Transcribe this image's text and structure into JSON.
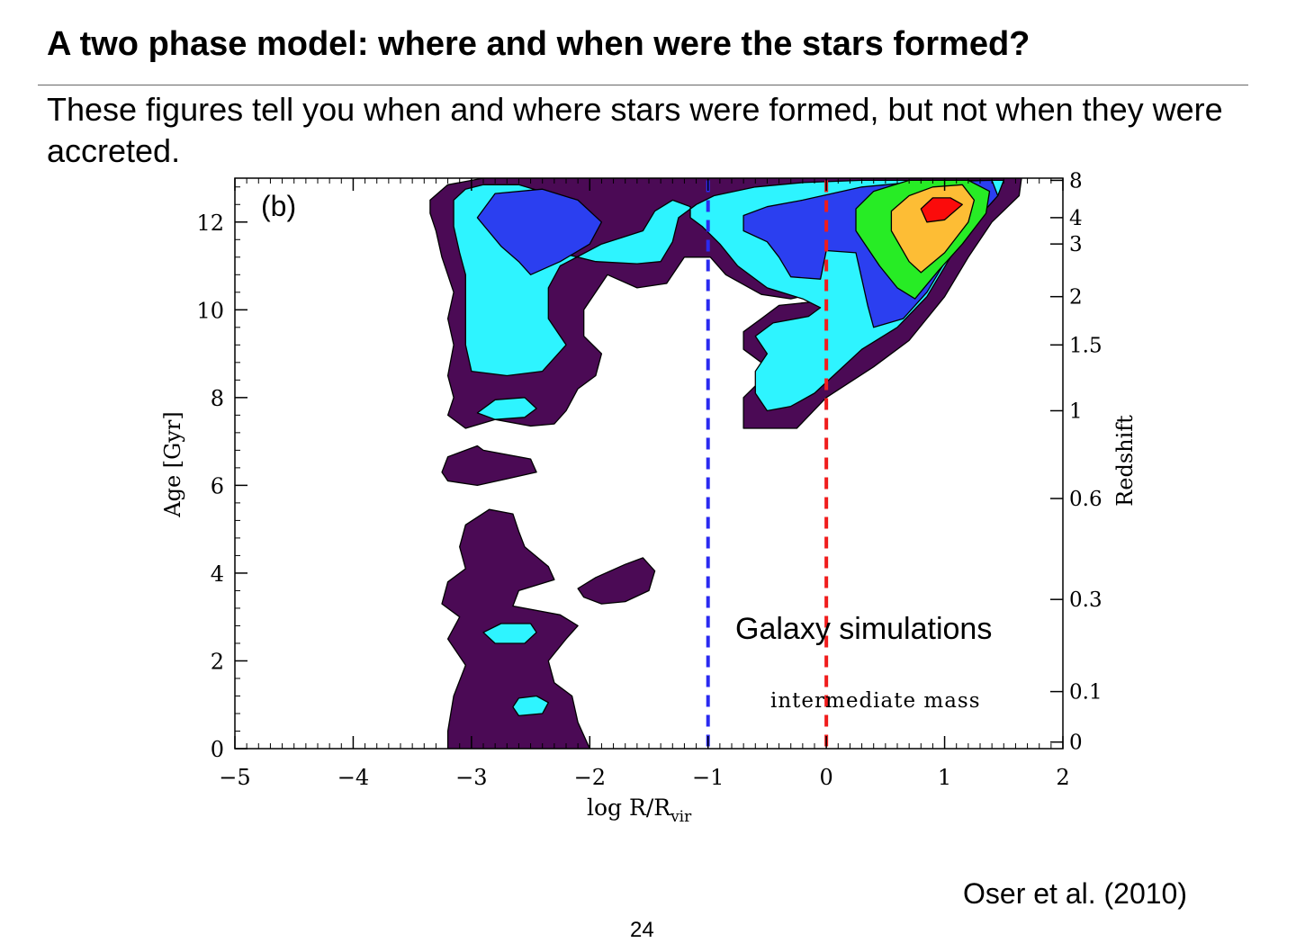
{
  "slide": {
    "title": "A two phase model: where and when were the stars formed?",
    "subtitle": "These figures tell you when and where stars were formed, but not when they were accreted.",
    "citation": "Oser et al. (2010)",
    "page_number": "24"
  },
  "chart_data": {
    "type": "contour",
    "panel_label": "(b)",
    "xlabel": "log R/R",
    "xlabel_subscript": "vir",
    "ylabel": "Age [Gyr]",
    "y2label": "Redshift",
    "xlim": [
      -5,
      2
    ],
    "ylim": [
      0,
      13
    ],
    "x_ticks": [
      -5,
      -4,
      -3,
      -2,
      -1,
      0,
      1,
      2
    ],
    "x_tick_labels": [
      "−5",
      "−4",
      "−3",
      "−2",
      "−1",
      "0",
      "1",
      "2"
    ],
    "y_ticks": [
      0,
      2,
      4,
      6,
      8,
      10,
      12
    ],
    "y_tick_labels": [
      "0",
      "2",
      "4",
      "6",
      "8",
      "10",
      "12"
    ],
    "redshift_ticks": [
      {
        "label": "8",
        "age": 12.95
      },
      {
        "label": "4",
        "age": 12.1
      },
      {
        "label": "3",
        "age": 11.5
      },
      {
        "label": "2",
        "age": 10.3
      },
      {
        "label": "1.5",
        "age": 9.2
      },
      {
        "label": "1",
        "age": 7.7
      },
      {
        "label": "0.6",
        "age": 5.7
      },
      {
        "label": "0.3",
        "age": 3.4
      },
      {
        "label": "0.1",
        "age": 1.3
      },
      {
        "label": "0",
        "age": 0.15
      }
    ],
    "reference_lines": [
      {
        "x": -1,
        "color": "#2a2af0",
        "style": "dashed"
      },
      {
        "x": 0,
        "color": "#f01c1c",
        "style": "dashed"
      }
    ],
    "annotations": {
      "main": "Galaxy simulations",
      "sub": "intermediate mass"
    },
    "levels": [
      {
        "color": "#4b0a55"
      },
      {
        "color": "#2ef4ff"
      },
      {
        "color": "#2b3ff0"
      },
      {
        "color": "#27ec25"
      },
      {
        "color": "#fdbd35"
      },
      {
        "color": "#fb0b0b"
      }
    ],
    "regions": [
      {
        "level": 0,
        "points": [
          [
            -3.35,
            12.5
          ],
          [
            -3.2,
            12.85
          ],
          [
            -2.9,
            13
          ],
          [
            -0.8,
            13
          ],
          [
            1.65,
            13
          ],
          [
            1.63,
            12.6
          ],
          [
            1.4,
            12
          ],
          [
            1.2,
            11.2
          ],
          [
            1.0,
            10.3
          ],
          [
            0.7,
            9.3
          ],
          [
            0.4,
            8.7
          ],
          [
            0.0,
            8.0
          ],
          [
            -0.25,
            7.3
          ],
          [
            -0.7,
            7.3
          ],
          [
            -0.7,
            7.6
          ],
          [
            -0.7,
            8.0
          ],
          [
            -0.55,
            8.4
          ],
          [
            -0.55,
            8.8
          ],
          [
            -0.7,
            9.1
          ],
          [
            -0.7,
            9.5
          ],
          [
            -0.55,
            9.8
          ],
          [
            -0.4,
            10.1
          ],
          [
            -0.05,
            10.2
          ],
          [
            -0.05,
            10.4
          ],
          [
            -0.3,
            10.25
          ],
          [
            -0.55,
            10.35
          ],
          [
            -0.85,
            10.8
          ],
          [
            -0.98,
            11.2
          ],
          [
            -1.2,
            11.2
          ],
          [
            -1.35,
            10.6
          ],
          [
            -1.6,
            10.5
          ],
          [
            -1.85,
            10.8
          ],
          [
            -2.05,
            10.0
          ],
          [
            -2.05,
            9.4
          ],
          [
            -1.9,
            9.0
          ],
          [
            -1.95,
            8.5
          ],
          [
            -2.1,
            8.2
          ],
          [
            -2.2,
            7.7
          ],
          [
            -2.3,
            7.4
          ],
          [
            -2.5,
            7.35
          ],
          [
            -2.8,
            7.5
          ],
          [
            -3.05,
            7.3
          ],
          [
            -3.2,
            7.6
          ],
          [
            -3.15,
            8.0
          ],
          [
            -3.2,
            8.5
          ],
          [
            -3.15,
            9.2
          ],
          [
            -3.2,
            9.8
          ],
          [
            -3.15,
            10.4
          ],
          [
            -3.25,
            11.2
          ],
          [
            -3.3,
            11.8
          ],
          [
            -3.35,
            12.2
          ]
        ]
      },
      {
        "level": 0,
        "points": [
          [
            -3.25,
            6.3
          ],
          [
            -3.2,
            6.65
          ],
          [
            -2.95,
            6.9
          ],
          [
            -2.9,
            6.8
          ],
          [
            -2.5,
            6.6
          ],
          [
            -2.45,
            6.3
          ],
          [
            -2.7,
            6.15
          ],
          [
            -2.95,
            6.0
          ],
          [
            -3.2,
            6.1
          ]
        ]
      },
      {
        "level": 0,
        "points": [
          [
            -3.2,
            0
          ],
          [
            -3.2,
            0.4
          ],
          [
            -3.15,
            1.2
          ],
          [
            -3.05,
            1.9
          ],
          [
            -3.2,
            2.5
          ],
          [
            -3.1,
            3.0
          ],
          [
            -3.25,
            3.3
          ],
          [
            -3.2,
            3.8
          ],
          [
            -3.05,
            4.1
          ],
          [
            -3.1,
            4.6
          ],
          [
            -3.05,
            5.1
          ],
          [
            -2.85,
            5.45
          ],
          [
            -2.65,
            5.35
          ],
          [
            -2.6,
            4.95
          ],
          [
            -2.55,
            4.6
          ],
          [
            -2.35,
            4.15
          ],
          [
            -2.3,
            3.85
          ],
          [
            -2.6,
            3.6
          ],
          [
            -2.65,
            3.25
          ],
          [
            -2.25,
            3.05
          ],
          [
            -2.1,
            2.8
          ],
          [
            -2.2,
            2.5
          ],
          [
            -2.35,
            2.0
          ],
          [
            -2.3,
            1.5
          ],
          [
            -2.15,
            1.2
          ],
          [
            -2.1,
            0.6
          ],
          [
            -2.0,
            0
          ]
        ]
      },
      {
        "level": 0,
        "points": [
          [
            -2.1,
            3.65
          ],
          [
            -1.95,
            3.9
          ],
          [
            -1.7,
            4.2
          ],
          [
            -1.55,
            4.35
          ],
          [
            -1.45,
            4.05
          ],
          [
            -1.5,
            3.6
          ],
          [
            -1.7,
            3.35
          ],
          [
            -1.9,
            3.3
          ],
          [
            -2.05,
            3.45
          ]
        ]
      },
      {
        "level": 1,
        "points": [
          [
            -3.15,
            12.5
          ],
          [
            -3.05,
            12.75
          ],
          [
            -2.9,
            12.85
          ],
          [
            -2.6,
            12.85
          ],
          [
            -2.35,
            12.65
          ],
          [
            -2.2,
            12.1
          ],
          [
            -2.25,
            11.3
          ],
          [
            -1.95,
            11.1
          ],
          [
            -1.6,
            11.05
          ],
          [
            -1.4,
            11.1
          ],
          [
            -1.3,
            11.55
          ],
          [
            -1.25,
            12.1
          ],
          [
            -1.1,
            12.4
          ],
          [
            -0.95,
            12.6
          ],
          [
            -0.6,
            12.8
          ],
          [
            -0.2,
            12.9
          ],
          [
            0.3,
            12.95
          ],
          [
            1.3,
            12.95
          ],
          [
            1.5,
            12.95
          ],
          [
            1.45,
            12.6
          ],
          [
            1.25,
            12.0
          ],
          [
            1.05,
            11.2
          ],
          [
            0.85,
            10.3
          ],
          [
            0.6,
            9.6
          ],
          [
            0.3,
            9.1
          ],
          [
            0.1,
            8.6
          ],
          [
            -0.1,
            8.1
          ],
          [
            -0.3,
            7.8
          ],
          [
            -0.5,
            7.7
          ],
          [
            -0.6,
            8.1
          ],
          [
            -0.6,
            8.6
          ],
          [
            -0.5,
            9.0
          ],
          [
            -0.6,
            9.4
          ],
          [
            -0.45,
            9.7
          ],
          [
            -0.15,
            9.85
          ],
          [
            -0.05,
            10.05
          ],
          [
            -0.2,
            10.25
          ],
          [
            -0.5,
            10.5
          ],
          [
            -0.75,
            11.0
          ],
          [
            -0.9,
            11.5
          ],
          [
            -1.05,
            11.9
          ],
          [
            -1.15,
            12.1
          ],
          [
            -1.15,
            12.35
          ],
          [
            -1.3,
            12.5
          ],
          [
            -1.45,
            12.25
          ],
          [
            -1.55,
            11.8
          ],
          [
            -1.9,
            11.5
          ],
          [
            -2.25,
            11.0
          ],
          [
            -2.35,
            10.5
          ],
          [
            -2.35,
            9.8
          ],
          [
            -2.2,
            9.2
          ],
          [
            -2.4,
            8.6
          ],
          [
            -2.7,
            8.5
          ],
          [
            -3.0,
            8.6
          ],
          [
            -3.05,
            9.2
          ],
          [
            -3.05,
            10.0
          ],
          [
            -3.05,
            10.8
          ],
          [
            -3.1,
            11.3
          ],
          [
            -3.15,
            11.9
          ]
        ]
      },
      {
        "level": 1,
        "points": [
          [
            -2.95,
            7.65
          ],
          [
            -2.8,
            7.95
          ],
          [
            -2.55,
            8.0
          ],
          [
            -2.45,
            7.75
          ],
          [
            -2.55,
            7.55
          ],
          [
            -2.8,
            7.5
          ]
        ]
      },
      {
        "level": 1,
        "points": [
          [
            -2.9,
            2.65
          ],
          [
            -2.75,
            2.85
          ],
          [
            -2.5,
            2.85
          ],
          [
            -2.45,
            2.65
          ],
          [
            -2.55,
            2.4
          ],
          [
            -2.8,
            2.4
          ]
        ]
      },
      {
        "level": 1,
        "points": [
          [
            -2.65,
            0.95
          ],
          [
            -2.6,
            1.15
          ],
          [
            -2.45,
            1.2
          ],
          [
            -2.35,
            1.05
          ],
          [
            -2.4,
            0.8
          ],
          [
            -2.6,
            0.75
          ]
        ]
      },
      {
        "level": 2,
        "points": [
          [
            -2.95,
            12.1
          ],
          [
            -2.75,
            11.45
          ],
          [
            -2.6,
            11.1
          ],
          [
            -2.5,
            10.8
          ],
          [
            -2.25,
            11.1
          ],
          [
            -2.0,
            11.5
          ],
          [
            -1.9,
            12.0
          ],
          [
            -2.1,
            12.5
          ],
          [
            -2.4,
            12.75
          ],
          [
            -2.8,
            12.65
          ]
        ]
      },
      {
        "level": 2,
        "points": [
          [
            -0.7,
            12.15
          ],
          [
            -0.5,
            12.35
          ],
          [
            -0.2,
            12.5
          ],
          [
            0.3,
            12.8
          ],
          [
            0.7,
            12.9
          ],
          [
            1.4,
            12.95
          ],
          [
            1.45,
            12.6
          ],
          [
            1.25,
            12.0
          ],
          [
            1.05,
            11.3
          ],
          [
            0.85,
            10.4
          ],
          [
            0.65,
            9.8
          ],
          [
            0.4,
            9.6
          ],
          [
            0.35,
            10.1
          ],
          [
            0.3,
            10.7
          ],
          [
            0.25,
            11.3
          ],
          [
            0.0,
            11.35
          ],
          [
            -0.05,
            10.7
          ],
          [
            -0.3,
            10.75
          ],
          [
            -0.4,
            11.2
          ],
          [
            -0.5,
            11.55
          ],
          [
            -0.7,
            11.8
          ]
        ]
      },
      {
        "level": 3,
        "points": [
          [
            0.25,
            12.3
          ],
          [
            0.25,
            11.8
          ],
          [
            0.45,
            11.0
          ],
          [
            0.6,
            10.5
          ],
          [
            0.75,
            10.25
          ],
          [
            0.95,
            10.9
          ],
          [
            1.15,
            11.5
          ],
          [
            1.35,
            12.2
          ],
          [
            1.38,
            12.7
          ],
          [
            1.2,
            12.95
          ],
          [
            0.7,
            12.95
          ],
          [
            0.4,
            12.7
          ]
        ]
      },
      {
        "level": 4,
        "points": [
          [
            0.55,
            12.25
          ],
          [
            0.55,
            11.8
          ],
          [
            0.7,
            11.1
          ],
          [
            0.8,
            10.85
          ],
          [
            1.0,
            11.3
          ],
          [
            1.2,
            12.0
          ],
          [
            1.25,
            12.5
          ],
          [
            1.15,
            12.85
          ],
          [
            0.9,
            12.8
          ],
          [
            0.7,
            12.6
          ]
        ]
      },
      {
        "level": 5,
        "points": [
          [
            0.8,
            12.3
          ],
          [
            0.85,
            12.0
          ],
          [
            1.0,
            12.05
          ],
          [
            1.15,
            12.4
          ],
          [
            1.05,
            12.55
          ],
          [
            0.9,
            12.55
          ]
        ]
      }
    ]
  }
}
